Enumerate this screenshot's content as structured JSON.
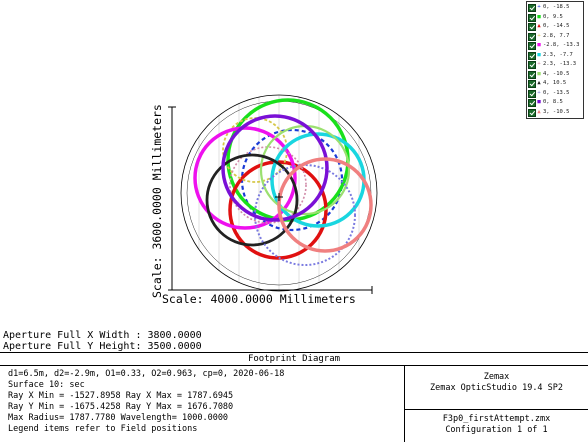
{
  "window": {
    "title": "Footprint Diagram"
  },
  "plot": {
    "scale_y_label": "Scale: 3600.0000 Millimeters",
    "scale_x_label": "Scale: 4000.0000 Millimeters",
    "colors": {
      "aperture": "#000000",
      "grid": "#d9d9d9",
      "background": "#ffffff"
    }
  },
  "legend": {
    "items": [
      {
        "symbol": "+",
        "color": "#1a3bd6",
        "label": "0, -18.5"
      },
      {
        "symbol": "■",
        "color": "#19e01b",
        "label": "0, 9.5"
      },
      {
        "symbol": "▲",
        "color": "#e01010",
        "label": "0, -14.5"
      },
      {
        "symbol": "+",
        "color": "#d6c84a",
        "label": "2.8, 7.7"
      },
      {
        "symbol": "■",
        "color": "#ee10ee",
        "label": "-2.8, -13.3"
      },
      {
        "symbol": "■",
        "color": "#19d6e0",
        "label": "2.3, -7.7"
      },
      {
        "symbol": "+",
        "color": "#d08aa8",
        "label": "2.3, -13.3"
      },
      {
        "symbol": "■",
        "color": "#9be070",
        "label": "4, -10.5"
      },
      {
        "symbol": "▲",
        "color": "#222222",
        "label": "4, 10.5"
      },
      {
        "symbol": "+",
        "color": "#7a7ae0",
        "label": "0, -13.5"
      },
      {
        "symbol": "■",
        "color": "#7a10d6",
        "label": "0, 8.5"
      },
      {
        "symbol": "▲",
        "color": "#f08080",
        "label": "3, -10.5"
      }
    ]
  },
  "aperture": {
    "x_width": "Aperture Full X Width : 3800.0000",
    "y_height": "Aperture Full Y Height: 3500.0000"
  },
  "info": {
    "lines": [
      "d1=6.5m, d2=-2.9m, O1=0.33, O2=0.963, cp=0, 2020-06-18",
      "Surface 10: sec",
      "Ray X Min = -1527.8958 Ray X Max = 1787.6945",
      "Ray Y Min = -1675.4258 Ray Y Max = 1676.7080",
      "Max Radius= 1787.7780 Wavelength= 1000.0000",
      "Legend items refer to Field positions"
    ],
    "company": "Zemax",
    "product": "Zemax OpticStudio 19.4 SP2",
    "file": "F3p0_firstAttempt.zmx",
    "configuration": "Configuration 1 of 1"
  }
}
